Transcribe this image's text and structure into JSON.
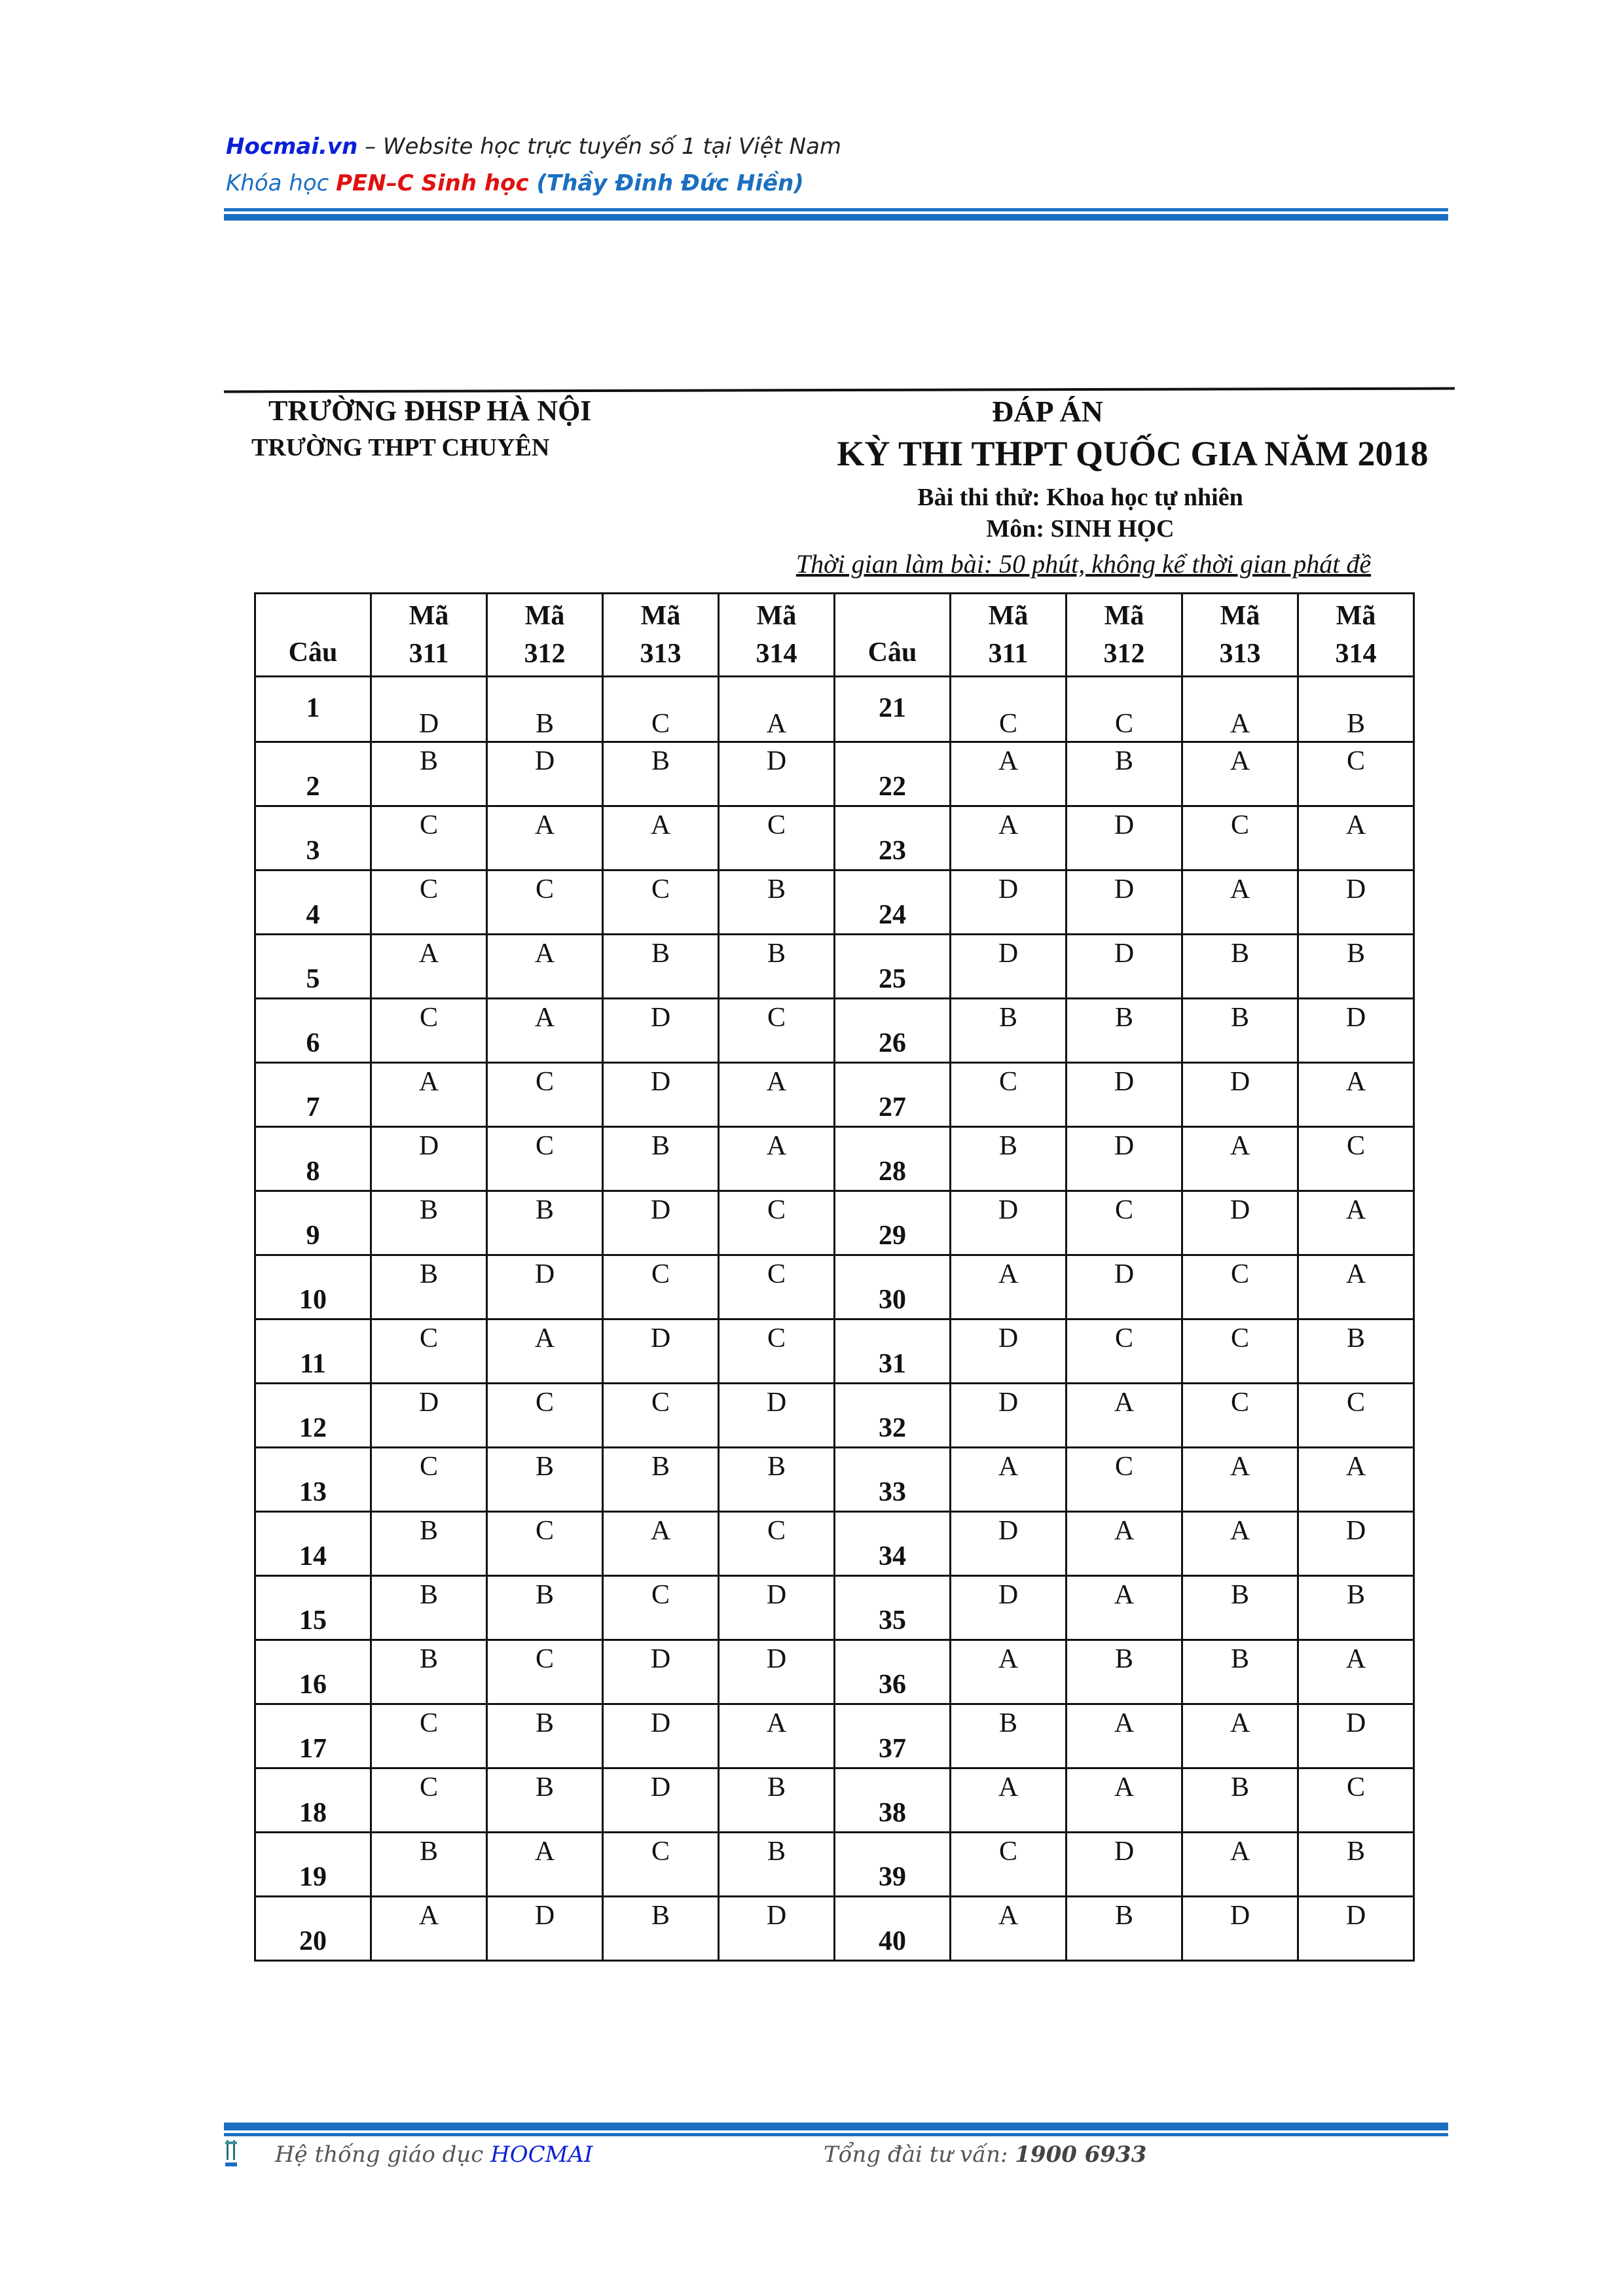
{
  "header": {
    "site": "Hocmai.vn",
    "site_tagline": " – Website học trực tuyến số 1 tại Việt Nam",
    "course_prefix": "Khóa học ",
    "course_name": "PEN–C Sinh học",
    "teacher": "  (Thầy Đinh Đức Hiền)"
  },
  "document": {
    "school": "TRƯỜNG ĐHSP HÀ NỘI",
    "subschool": "TRƯỜNG THPT CHUYÊN",
    "title": "ĐÁP ÁN",
    "exam": "KỲ THI THPT QUỐC GIA NĂM 2018",
    "test": "Bài thi thử: Khoa học tự nhiên",
    "subject": "Môn: SINH HỌC",
    "time": "Thời gian làm bài: 50 phút, không kể thời gian phát đề"
  },
  "table": {
    "col_label": "Câu",
    "code_prefix": "Mã",
    "codes": [
      "311",
      "312",
      "313",
      "314"
    ],
    "left": [
      {
        "q": "1",
        "a": [
          "D",
          "B",
          "C",
          "A"
        ]
      },
      {
        "q": "2",
        "a": [
          "B",
          "D",
          "B",
          "D"
        ]
      },
      {
        "q": "3",
        "a": [
          "C",
          "A",
          "A",
          "C"
        ]
      },
      {
        "q": "4",
        "a": [
          "C",
          "C",
          "C",
          "B"
        ]
      },
      {
        "q": "5",
        "a": [
          "A",
          "A",
          "B",
          "B"
        ]
      },
      {
        "q": "6",
        "a": [
          "C",
          "A",
          "D",
          "C"
        ]
      },
      {
        "q": "7",
        "a": [
          "A",
          "C",
          "D",
          "A"
        ]
      },
      {
        "q": "8",
        "a": [
          "D",
          "C",
          "B",
          "A"
        ]
      },
      {
        "q": "9",
        "a": [
          "B",
          "B",
          "D",
          "C"
        ]
      },
      {
        "q": "10",
        "a": [
          "B",
          "D",
          "C",
          "C"
        ]
      },
      {
        "q": "11",
        "a": [
          "C",
          "A",
          "D",
          "C"
        ]
      },
      {
        "q": "12",
        "a": [
          "D",
          "C",
          "C",
          "D"
        ]
      },
      {
        "q": "13",
        "a": [
          "C",
          "B",
          "B",
          "B"
        ]
      },
      {
        "q": "14",
        "a": [
          "B",
          "C",
          "A",
          "C"
        ]
      },
      {
        "q": "15",
        "a": [
          "B",
          "B",
          "C",
          "D"
        ]
      },
      {
        "q": "16",
        "a": [
          "B",
          "C",
          "D",
          "D"
        ]
      },
      {
        "q": "17",
        "a": [
          "C",
          "B",
          "D",
          "A"
        ]
      },
      {
        "q": "18",
        "a": [
          "C",
          "B",
          "D",
          "B"
        ]
      },
      {
        "q": "19",
        "a": [
          "B",
          "A",
          "C",
          "B"
        ]
      },
      {
        "q": "20",
        "a": [
          "A",
          "D",
          "B",
          "D"
        ]
      }
    ],
    "right": [
      {
        "q": "21",
        "a": [
          "C",
          "C",
          "A",
          "B"
        ]
      },
      {
        "q": "22",
        "a": [
          "A",
          "B",
          "A",
          "C"
        ]
      },
      {
        "q": "23",
        "a": [
          "A",
          "D",
          "C",
          "A"
        ]
      },
      {
        "q": "24",
        "a": [
          "D",
          "D",
          "A",
          "D"
        ]
      },
      {
        "q": "25",
        "a": [
          "D",
          "D",
          "B",
          "B"
        ]
      },
      {
        "q": "26",
        "a": [
          "B",
          "B",
          "B",
          "D"
        ]
      },
      {
        "q": "27",
        "a": [
          "C",
          "D",
          "D",
          "A"
        ]
      },
      {
        "q": "28",
        "a": [
          "B",
          "D",
          "A",
          "C"
        ]
      },
      {
        "q": "29",
        "a": [
          "D",
          "C",
          "D",
          "A"
        ]
      },
      {
        "q": "30",
        "a": [
          "A",
          "D",
          "C",
          "A"
        ]
      },
      {
        "q": "31",
        "a": [
          "D",
          "C",
          "C",
          "B"
        ]
      },
      {
        "q": "32",
        "a": [
          "D",
          "A",
          "C",
          "C"
        ]
      },
      {
        "q": "33",
        "a": [
          "A",
          "C",
          "A",
          "A"
        ]
      },
      {
        "q": "34",
        "a": [
          "D",
          "A",
          "A",
          "D"
        ]
      },
      {
        "q": "35",
        "a": [
          "D",
          "A",
          "B",
          "B"
        ]
      },
      {
        "q": "36",
        "a": [
          "A",
          "B",
          "B",
          "A"
        ]
      },
      {
        "q": "37",
        "a": [
          "B",
          "A",
          "A",
          "D"
        ]
      },
      {
        "q": "38",
        "a": [
          "A",
          "A",
          "B",
          "C"
        ]
      },
      {
        "q": "39",
        "a": [
          "C",
          "D",
          "A",
          "B"
        ]
      },
      {
        "q": "40",
        "a": [
          "A",
          "B",
          "D",
          "D"
        ]
      }
    ]
  },
  "footer": {
    "system": "Hệ thống giáo dục ",
    "brand": "HOCMAI",
    "hotline_label": "Tổng đài tư vấn: ",
    "hotline": "1900 6933"
  },
  "colors": {
    "brand_blue": "#1a6fc0",
    "link_blue": "#0a1fd8",
    "accent_red": "#e01010"
  }
}
